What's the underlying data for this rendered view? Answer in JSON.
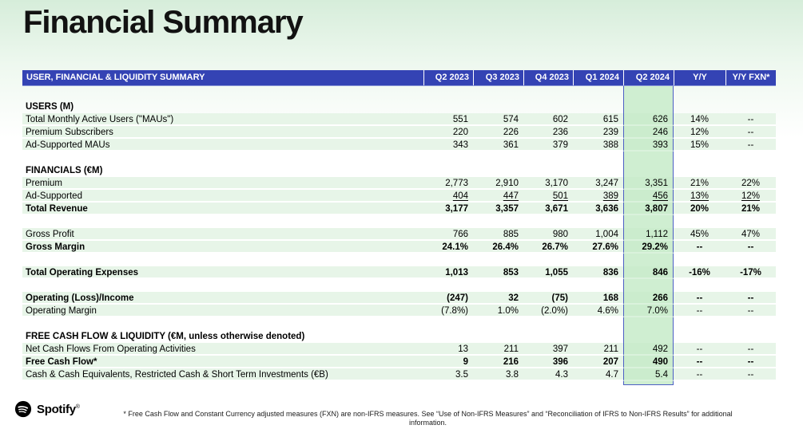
{
  "title": "Financial Summary",
  "table": {
    "title": "USER, FINANCIAL & LIQUIDITY SUMMARY",
    "columns": [
      "Q2 2023",
      "Q3 2023",
      "Q4 2023",
      "Q1 2024",
      "Q2 2024",
      "Y/Y",
      "Y/Y FXN*"
    ],
    "highlighted_column": "Q2 2024",
    "rows": [
      {
        "type": "top-spacer"
      },
      {
        "type": "section",
        "label": "USERS (M)"
      },
      {
        "type": "data",
        "label": "Total Monthly Active Users (\"MAUs\")",
        "values": [
          "551",
          "574",
          "602",
          "615",
          "626",
          "14%",
          "--"
        ]
      },
      {
        "type": "data",
        "label": "Premium Subscribers",
        "values": [
          "220",
          "226",
          "236",
          "239",
          "246",
          "12%",
          "--"
        ]
      },
      {
        "type": "data",
        "label": "Ad-Supported MAUs",
        "values": [
          "343",
          "361",
          "379",
          "388",
          "393",
          "15%",
          "--"
        ]
      },
      {
        "type": "spacer"
      },
      {
        "type": "section",
        "label": "FINANCIALS (€M)"
      },
      {
        "type": "data",
        "label": "Premium",
        "values": [
          "2,773",
          "2,910",
          "3,170",
          "3,247",
          "3,351",
          "21%",
          "22%"
        ]
      },
      {
        "type": "data",
        "label": "Ad-Supported",
        "underline": true,
        "values": [
          "404",
          "447",
          "501",
          "389",
          "456",
          "13%",
          "12%"
        ]
      },
      {
        "type": "data",
        "label": "Total Revenue",
        "bold": true,
        "values": [
          "3,177",
          "3,357",
          "3,671",
          "3,636",
          "3,807",
          "20%",
          "21%"
        ]
      },
      {
        "type": "spacer"
      },
      {
        "type": "data",
        "label": "Gross Profit",
        "values": [
          "766",
          "885",
          "980",
          "1,004",
          "1,112",
          "45%",
          "47%"
        ]
      },
      {
        "type": "data",
        "label": "Gross Margin",
        "bold": true,
        "values": [
          "24.1%",
          "26.4%",
          "26.7%",
          "27.6%",
          "29.2%",
          "--",
          "--"
        ]
      },
      {
        "type": "spacer"
      },
      {
        "type": "data",
        "label": "Total Operating Expenses",
        "bold": true,
        "values": [
          "1,013",
          "853",
          "1,055",
          "836",
          "846",
          "-16%",
          "-17%"
        ]
      },
      {
        "type": "spacer"
      },
      {
        "type": "data",
        "label": "Operating (Loss)/Income",
        "bold": true,
        "values": [
          "(247)",
          "32",
          "(75)",
          "168",
          "266",
          "--",
          "--"
        ]
      },
      {
        "type": "data",
        "label": "Operating Margin",
        "values": [
          "(7.8%)",
          "1.0%",
          "(2.0%)",
          "4.6%",
          "7.0%",
          "--",
          "--"
        ]
      },
      {
        "type": "spacer"
      },
      {
        "type": "section",
        "label": "FREE CASH FLOW & LIQUIDITY (€M, unless otherwise denoted)"
      },
      {
        "type": "data",
        "label": "Net Cash Flows From Operating Activities",
        "values": [
          "13",
          "211",
          "397",
          "211",
          "492",
          "--",
          "--"
        ]
      },
      {
        "type": "data",
        "label": "Free Cash Flow*",
        "bold": true,
        "values": [
          "9",
          "216",
          "396",
          "207",
          "490",
          "--",
          "--"
        ]
      },
      {
        "type": "data",
        "label": "Cash & Cash Equivalents, Restricted Cash & Short Term Investments (€B)",
        "values": [
          "3.5",
          "3.8",
          "4.3",
          "4.7",
          "5.4",
          "--",
          "--"
        ]
      }
    ]
  },
  "footer": {
    "brand": "Spotify",
    "registered_mark": "®",
    "footnote": "* Free Cash Flow and Constant Currency adjusted measures (FXN) are non-IFRS measures. See “Use of Non-IFRS Measures” and “Reconciliation of IFRS to Non-IFRS Results” for additional information."
  },
  "colors": {
    "header_blue": "#3443b4",
    "highlight_border_blue": "#4c5fc4",
    "row_band_green": "#e7f5e8",
    "highlight_green": "#cbeccd",
    "background_top_green": "#d6edda"
  }
}
